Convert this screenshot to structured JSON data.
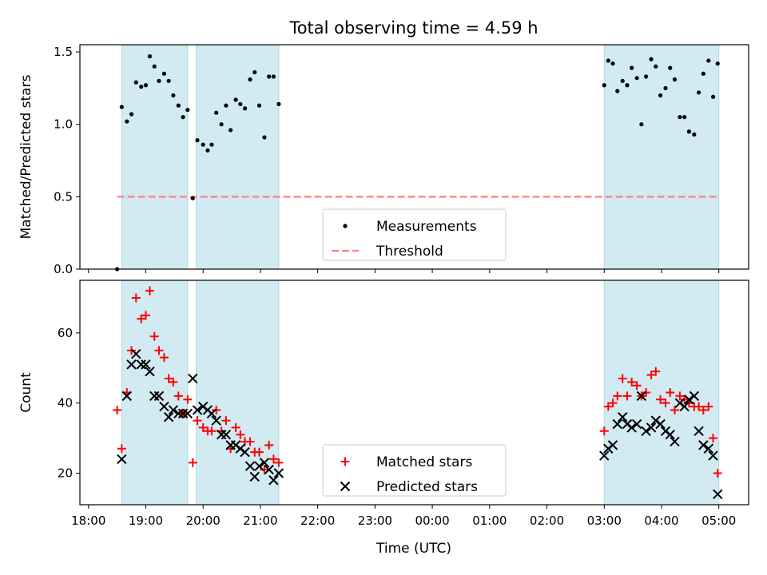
{
  "figure": {
    "title": "Total observing time = 4.59 h",
    "xlabel": "Time (UTC)",
    "x_tick_labels": [
      "18:00",
      "19:00",
      "20:00",
      "21:00",
      "22:00",
      "23:00",
      "00:00",
      "01:00",
      "02:00",
      "03:00",
      "04:00",
      "05:00"
    ],
    "x_ticks": [
      18,
      19,
      20,
      21,
      22,
      23,
      24,
      25,
      26,
      27,
      28,
      29
    ]
  },
  "colors": {
    "shade": "#add8e6",
    "threshold": "#ff8080",
    "matched": "#ff0000",
    "predicted": "#000000",
    "measurement": "#000000"
  },
  "chart_data": [
    {
      "type": "scatter",
      "ylabel": "Matched/Predicted stars",
      "ylim": [
        0,
        1.55
      ],
      "xlim": [
        17.85,
        29.52
      ],
      "y_ticks": [
        0,
        0.5,
        1.0,
        1.5
      ],
      "y_tick_labels": [
        "0.0",
        "0.5",
        "1.0",
        "1.5"
      ],
      "shaded_spans": [
        [
          18.58,
          19.73
        ],
        [
          19.88,
          21.32
        ],
        [
          27.0,
          29.0
        ]
      ],
      "threshold": {
        "name": "Threshold",
        "value": 0.5,
        "x_range": [
          18.5,
          28.98
        ]
      },
      "legend": {
        "position": "lower center",
        "entries": [
          "Measurements",
          "Threshold"
        ]
      },
      "series": [
        {
          "name": "Measurements",
          "points": [
            [
              18.5,
              0.0
            ],
            [
              18.58,
              1.12
            ],
            [
              18.67,
              1.02
            ],
            [
              18.75,
              1.07
            ],
            [
              18.83,
              1.29
            ],
            [
              18.92,
              1.26
            ],
            [
              19.0,
              1.27
            ],
            [
              19.07,
              1.47
            ],
            [
              19.15,
              1.4
            ],
            [
              19.23,
              1.3
            ],
            [
              19.32,
              1.35
            ],
            [
              19.4,
              1.3
            ],
            [
              19.48,
              1.2
            ],
            [
              19.57,
              1.13
            ],
            [
              19.65,
              1.05
            ],
            [
              19.73,
              1.1
            ],
            [
              19.82,
              0.49
            ],
            [
              19.9,
              0.89
            ],
            [
              20.0,
              0.86
            ],
            [
              20.08,
              0.82
            ],
            [
              20.15,
              0.86
            ],
            [
              20.23,
              1.08
            ],
            [
              20.32,
              1.0
            ],
            [
              20.4,
              1.13
            ],
            [
              20.48,
              0.96
            ],
            [
              20.57,
              1.17
            ],
            [
              20.65,
              1.14
            ],
            [
              20.73,
              1.11
            ],
            [
              20.82,
              1.31
            ],
            [
              20.9,
              1.36
            ],
            [
              20.98,
              1.13
            ],
            [
              21.07,
              0.91
            ],
            [
              21.15,
              1.33
            ],
            [
              21.23,
              1.33
            ],
            [
              21.32,
              1.14
            ],
            [
              27.0,
              1.27
            ],
            [
              27.07,
              1.44
            ],
            [
              27.15,
              1.42
            ],
            [
              27.23,
              1.23
            ],
            [
              27.32,
              1.3
            ],
            [
              27.4,
              1.27
            ],
            [
              27.48,
              1.39
            ],
            [
              27.57,
              1.32
            ],
            [
              27.65,
              1.0
            ],
            [
              27.73,
              1.33
            ],
            [
              27.82,
              1.45
            ],
            [
              27.9,
              1.4
            ],
            [
              27.98,
              1.2
            ],
            [
              28.07,
              1.25
            ],
            [
              28.15,
              1.39
            ],
            [
              28.23,
              1.31
            ],
            [
              28.32,
              1.05
            ],
            [
              28.4,
              1.05
            ],
            [
              28.48,
              0.95
            ],
            [
              28.57,
              0.93
            ],
            [
              28.65,
              1.22
            ],
            [
              28.73,
              1.35
            ],
            [
              28.82,
              1.44
            ],
            [
              28.9,
              1.19
            ],
            [
              28.98,
              1.42
            ]
          ]
        }
      ]
    },
    {
      "type": "scatter",
      "ylabel": "Count",
      "ylim": [
        11,
        75
      ],
      "xlim": [
        17.85,
        29.52
      ],
      "y_ticks": [
        20,
        40,
        60
      ],
      "y_tick_labels": [
        "20",
        "40",
        "60"
      ],
      "shaded_spans": [
        [
          18.58,
          19.73
        ],
        [
          19.88,
          21.32
        ],
        [
          27.0,
          29.0
        ]
      ],
      "legend": {
        "position": "lower center",
        "entries": [
          "Matched stars",
          "Predicted stars"
        ]
      },
      "series": [
        {
          "name": "Matched stars",
          "marker": "plus",
          "points": [
            [
              18.5,
              38
            ],
            [
              18.58,
              27
            ],
            [
              18.67,
              43
            ],
            [
              18.75,
              55
            ],
            [
              18.83,
              70
            ],
            [
              18.92,
              64
            ],
            [
              19.0,
              65
            ],
            [
              19.07,
              72
            ],
            [
              19.15,
              59
            ],
            [
              19.23,
              55
            ],
            [
              19.32,
              53
            ],
            [
              19.4,
              47
            ],
            [
              19.48,
              46
            ],
            [
              19.57,
              42
            ],
            [
              19.65,
              37
            ],
            [
              19.73,
              41
            ],
            [
              19.82,
              23
            ],
            [
              19.9,
              35
            ],
            [
              20.0,
              33
            ],
            [
              20.08,
              32
            ],
            [
              20.15,
              32
            ],
            [
              20.23,
              38
            ],
            [
              20.32,
              32
            ],
            [
              20.4,
              35
            ],
            [
              20.48,
              27
            ],
            [
              20.57,
              33
            ],
            [
              20.65,
              31
            ],
            [
              20.73,
              29
            ],
            [
              20.82,
              29
            ],
            [
              20.9,
              26
            ],
            [
              20.98,
              26
            ],
            [
              21.07,
              21
            ],
            [
              21.15,
              28
            ],
            [
              21.23,
              24
            ],
            [
              21.32,
              23
            ],
            [
              27.0,
              32
            ],
            [
              27.07,
              39
            ],
            [
              27.15,
              40
            ],
            [
              27.23,
              42
            ],
            [
              27.32,
              47
            ],
            [
              27.4,
              42
            ],
            [
              27.48,
              46
            ],
            [
              27.57,
              45
            ],
            [
              27.65,
              42
            ],
            [
              27.73,
              43
            ],
            [
              27.82,
              48
            ],
            [
              27.9,
              49
            ],
            [
              27.98,
              41
            ],
            [
              28.07,
              40
            ],
            [
              28.15,
              43
            ],
            [
              28.23,
              38
            ],
            [
              28.32,
              42
            ],
            [
              28.4,
              41
            ],
            [
              28.48,
              40
            ],
            [
              28.57,
              39
            ],
            [
              28.65,
              39
            ],
            [
              28.73,
              38
            ],
            [
              28.82,
              39
            ],
            [
              28.9,
              30
            ],
            [
              28.98,
              20
            ]
          ]
        },
        {
          "name": "Predicted stars",
          "marker": "x",
          "points": [
            [
              18.58,
              24
            ],
            [
              18.67,
              42
            ],
            [
              18.75,
              51
            ],
            [
              18.83,
              54
            ],
            [
              18.92,
              51
            ],
            [
              19.0,
              51
            ],
            [
              19.07,
              49
            ],
            [
              19.15,
              42
            ],
            [
              19.23,
              42
            ],
            [
              19.32,
              39
            ],
            [
              19.4,
              36
            ],
            [
              19.48,
              38
            ],
            [
              19.57,
              37
            ],
            [
              19.65,
              37
            ],
            [
              19.73,
              37
            ],
            [
              19.82,
              47
            ],
            [
              19.9,
              38
            ],
            [
              20.0,
              39
            ],
            [
              20.08,
              38
            ],
            [
              20.15,
              37
            ],
            [
              20.23,
              35
            ],
            [
              20.32,
              31
            ],
            [
              20.4,
              31
            ],
            [
              20.48,
              28
            ],
            [
              20.57,
              28
            ],
            [
              20.65,
              27
            ],
            [
              20.73,
              26
            ],
            [
              20.82,
              22
            ],
            [
              20.9,
              19
            ],
            [
              20.98,
              22
            ],
            [
              21.07,
              23
            ],
            [
              21.15,
              21
            ],
            [
              21.23,
              18
            ],
            [
              21.32,
              20
            ],
            [
              27.0,
              25
            ],
            [
              27.07,
              27
            ],
            [
              27.15,
              28
            ],
            [
              27.23,
              34
            ],
            [
              27.32,
              36
            ],
            [
              27.4,
              34
            ],
            [
              27.48,
              33
            ],
            [
              27.57,
              34
            ],
            [
              27.65,
              42
            ],
            [
              27.73,
              32
            ],
            [
              27.82,
              33
            ],
            [
              27.9,
              35
            ],
            [
              27.98,
              34
            ],
            [
              28.07,
              32
            ],
            [
              28.15,
              31
            ],
            [
              28.23,
              29
            ],
            [
              28.32,
              40
            ],
            [
              28.4,
              39
            ],
            [
              28.48,
              41
            ],
            [
              28.57,
              42
            ],
            [
              28.65,
              32
            ],
            [
              28.73,
              28
            ],
            [
              28.82,
              27
            ],
            [
              28.9,
              25
            ],
            [
              28.98,
              14
            ]
          ]
        }
      ]
    }
  ]
}
